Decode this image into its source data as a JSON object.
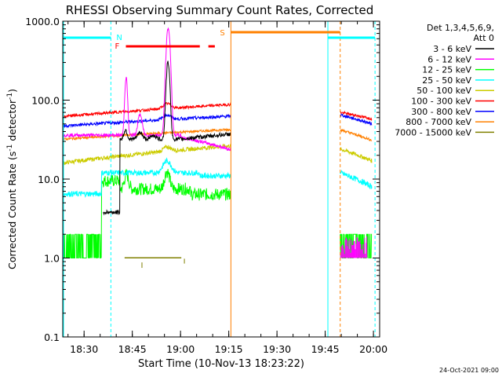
{
  "chart_data": {
    "type": "line",
    "title": "RHESSI Observing Summary Count Rates, Corrected",
    "xlabel": "Start Time (10-Nov-13 18:23:22)",
    "ylabel": "Corrected Count Rate (s",
    "ylabel_sup": "-1",
    "ylabel_tail": " detector",
    "ylabel_end": ")",
    "yscale": "log",
    "ylim": [
      0.1,
      1000
    ],
    "xlim": [
      18.3894,
      20.0322
    ],
    "y_ticks": [
      {
        "value": 0.1,
        "label": "0.1"
      },
      {
        "value": 1,
        "label": "1.0"
      },
      {
        "value": 10,
        "label": "10.0"
      },
      {
        "value": 100,
        "label": "100.0"
      },
      {
        "value": 1000,
        "label": "1000.0"
      }
    ],
    "x_ticks": [
      {
        "value": 18.5,
        "label": "18:30"
      },
      {
        "value": 18.75,
        "label": "18:45"
      },
      {
        "value": 19.0,
        "label": "19:00"
      },
      {
        "value": 19.25,
        "label": "19:15"
      },
      {
        "value": 19.5,
        "label": "19:30"
      },
      {
        "value": 19.75,
        "label": "19:45"
      },
      {
        "value": 20.0,
        "label": "20:00"
      }
    ],
    "legend_header": [
      "Det 1,3,4,5,6,9,",
      "Att 0"
    ],
    "series": [
      {
        "name": "3 - 6 keV",
        "color": "#000000"
      },
      {
        "name": "6 - 12 keV",
        "color": "#ff00ff"
      },
      {
        "name": "12 - 25 keV",
        "color": "#00ff00"
      },
      {
        "name": "25 - 50 keV",
        "color": "#00ffff"
      },
      {
        "name": "50 - 100 keV",
        "color": "#cccc00"
      },
      {
        "name": "100 - 300 keV",
        "color": "#ff0000"
      },
      {
        "name": "300 - 800 keV",
        "color": "#0000ff"
      },
      {
        "name": "800 - 7000 keV",
        "color": "#ff8000"
      },
      {
        "name": "7000 - 15000 keV",
        "color": "#808000"
      }
    ],
    "annotations": {
      "night_label": "N",
      "flare_label": "F",
      "saa_label": "S",
      "night_bars": [
        [
          18.3894,
          18.6389
        ],
        [
          19.7639,
          20.0083
        ]
      ],
      "night_lines": [
        18.6389,
        19.7639,
        20.0083
      ],
      "saa_bar": [
        19.2611,
        19.8278
      ],
      "saa_lines": [
        19.2611,
        19.8278
      ],
      "flare_bar_solid": [
        18.7167,
        19.1
      ],
      "flare_bar_dash": [
        19.1444,
        19.1778
      ]
    },
    "footer_date": "24-Oct-2021 09:00"
  }
}
